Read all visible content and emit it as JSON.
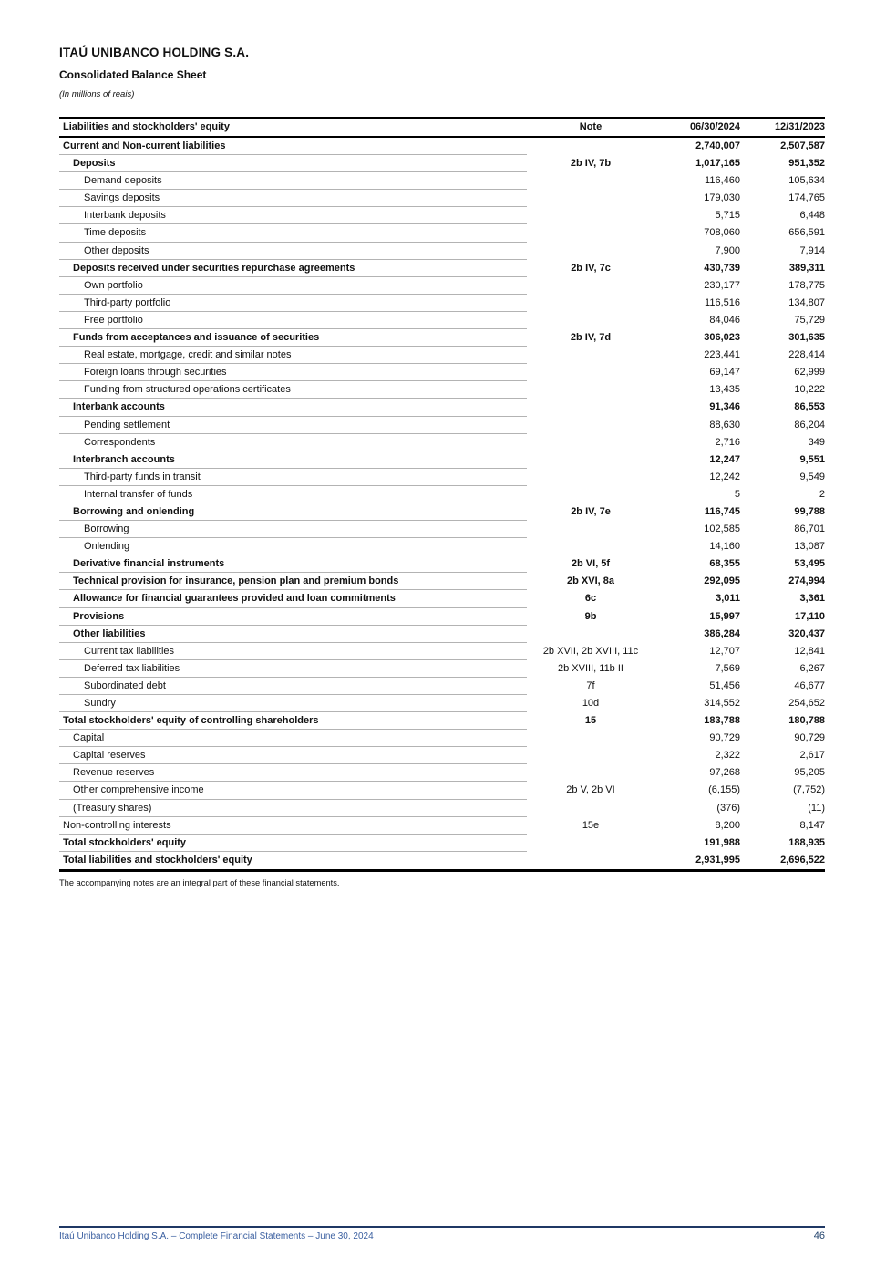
{
  "header": {
    "company": "ITAÚ UNIBANCO HOLDING S.A.",
    "title": "Consolidated Balance Sheet",
    "unit_note": "(In millions of reais)"
  },
  "table": {
    "columns": [
      "Liabilities and stockholders' equity",
      "Note",
      "06/30/2024",
      "12/31/2023"
    ],
    "rows": [
      {
        "label": "Current and Non-current liabilities",
        "note": "",
        "v2024": "2,740,007",
        "v2023": "2,507,587",
        "level": 0,
        "bold": true
      },
      {
        "label": "Deposits",
        "note": "2b IV, 7b",
        "v2024": "1,017,165",
        "v2023": "951,352",
        "level": 1,
        "bold": true
      },
      {
        "label": "Demand deposits",
        "note": "",
        "v2024": "116,460",
        "v2023": "105,634",
        "level": 2,
        "bold": false
      },
      {
        "label": "Savings deposits",
        "note": "",
        "v2024": "179,030",
        "v2023": "174,765",
        "level": 2,
        "bold": false
      },
      {
        "label": "Interbank deposits",
        "note": "",
        "v2024": "5,715",
        "v2023": "6,448",
        "level": 2,
        "bold": false
      },
      {
        "label": "Time deposits",
        "note": "",
        "v2024": "708,060",
        "v2023": "656,591",
        "level": 2,
        "bold": false
      },
      {
        "label": "Other deposits",
        "note": "",
        "v2024": "7,900",
        "v2023": "7,914",
        "level": 2,
        "bold": false
      },
      {
        "label": "Deposits received under securities repurchase agreements",
        "note": "2b IV, 7c",
        "v2024": "430,739",
        "v2023": "389,311",
        "level": 1,
        "bold": true
      },
      {
        "label": "Own portfolio",
        "note": "",
        "v2024": "230,177",
        "v2023": "178,775",
        "level": 2,
        "bold": false
      },
      {
        "label": "Third-party portfolio",
        "note": "",
        "v2024": "116,516",
        "v2023": "134,807",
        "level": 2,
        "bold": false
      },
      {
        "label": "Free portfolio",
        "note": "",
        "v2024": "84,046",
        "v2023": "75,729",
        "level": 2,
        "bold": false
      },
      {
        "label": "Funds from acceptances and issuance of securities",
        "note": "2b IV, 7d",
        "v2024": "306,023",
        "v2023": "301,635",
        "level": 1,
        "bold": true
      },
      {
        "label": "Real estate, mortgage, credit and similar notes",
        "note": "",
        "v2024": "223,441",
        "v2023": "228,414",
        "level": 2,
        "bold": false
      },
      {
        "label": "Foreign loans through securities",
        "note": "",
        "v2024": "69,147",
        "v2023": "62,999",
        "level": 2,
        "bold": false
      },
      {
        "label": "Funding from structured operations certificates",
        "note": "",
        "v2024": "13,435",
        "v2023": "10,222",
        "level": 2,
        "bold": false
      },
      {
        "label": "Interbank accounts",
        "note": "",
        "v2024": "91,346",
        "v2023": "86,553",
        "level": 1,
        "bold": true
      },
      {
        "label": "Pending settlement",
        "note": "",
        "v2024": "88,630",
        "v2023": "86,204",
        "level": 2,
        "bold": false
      },
      {
        "label": "Correspondents",
        "note": "",
        "v2024": "2,716",
        "v2023": "349",
        "level": 2,
        "bold": false
      },
      {
        "label": "Interbranch accounts",
        "note": "",
        "v2024": "12,247",
        "v2023": "9,551",
        "level": 1,
        "bold": true
      },
      {
        "label": "Third-party funds in transit",
        "note": "",
        "v2024": "12,242",
        "v2023": "9,549",
        "level": 2,
        "bold": false
      },
      {
        "label": "Internal transfer of funds",
        "note": "",
        "v2024": "5",
        "v2023": "2",
        "level": 2,
        "bold": false
      },
      {
        "label": "Borrowing and onlending",
        "note": "2b IV, 7e",
        "v2024": "116,745",
        "v2023": "99,788",
        "level": 1,
        "bold": true
      },
      {
        "label": "Borrowing",
        "note": "",
        "v2024": "102,585",
        "v2023": "86,701",
        "level": 2,
        "bold": false
      },
      {
        "label": "Onlending",
        "note": "",
        "v2024": "14,160",
        "v2023": "13,087",
        "level": 2,
        "bold": false
      },
      {
        "label": "Derivative financial instruments",
        "note": "2b VI, 5f",
        "v2024": "68,355",
        "v2023": "53,495",
        "level": 1,
        "bold": true
      },
      {
        "label": "Technical provision for insurance, pension plan and premium bonds",
        "note": "2b XVI, 8a",
        "v2024": "292,095",
        "v2023": "274,994",
        "level": 1,
        "bold": true
      },
      {
        "label": "Allowance for financial guarantees provided and loan commitments",
        "note": "6c",
        "v2024": "3,011",
        "v2023": "3,361",
        "level": 1,
        "bold": true
      },
      {
        "label": "Provisions",
        "note": "9b",
        "v2024": "15,997",
        "v2023": "17,110",
        "level": 1,
        "bold": true
      },
      {
        "label": "Other liabilities",
        "note": "",
        "v2024": "386,284",
        "v2023": "320,437",
        "level": 1,
        "bold": true
      },
      {
        "label": "Current tax liabilities",
        "note": "2b XVII, 2b XVIII, 11c",
        "v2024": "12,707",
        "v2023": "12,841",
        "level": 2,
        "bold": false
      },
      {
        "label": "Deferred tax liabilities",
        "note": "2b XVIII, 11b II",
        "v2024": "7,569",
        "v2023": "6,267",
        "level": 2,
        "bold": false
      },
      {
        "label": "Subordinated debt",
        "note": "7f",
        "v2024": "51,456",
        "v2023": "46,677",
        "level": 2,
        "bold": false
      },
      {
        "label": "Sundry",
        "note": "10d",
        "v2024": "314,552",
        "v2023": "254,652",
        "level": 2,
        "bold": false
      },
      {
        "label": "Total stockholders' equity of controlling shareholders",
        "note": "15",
        "v2024": "183,788",
        "v2023": "180,788",
        "level": 0,
        "bold": true
      },
      {
        "label": "Capital",
        "note": "",
        "v2024": "90,729",
        "v2023": "90,729",
        "level": 1,
        "bold": false
      },
      {
        "label": "Capital reserves",
        "note": "",
        "v2024": "2,322",
        "v2023": "2,617",
        "level": 1,
        "bold": false
      },
      {
        "label": "Revenue reserves",
        "note": "",
        "v2024": "97,268",
        "v2023": "95,205",
        "level": 1,
        "bold": false
      },
      {
        "label": "Other comprehensive income",
        "note": "2b V, 2b VI",
        "v2024": "(6,155)",
        "v2023": "(7,752)",
        "level": 1,
        "bold": false
      },
      {
        "label": "(Treasury shares)",
        "note": "",
        "v2024": "(376)",
        "v2023": "(11)",
        "level": 1,
        "bold": false
      },
      {
        "label": "Non-controlling interests",
        "note": "15e",
        "v2024": "8,200",
        "v2023": "8,147",
        "level": 0,
        "bold": false
      },
      {
        "label": "Total stockholders' equity",
        "note": "",
        "v2024": "191,988",
        "v2023": "188,935",
        "level": 0,
        "bold": true
      },
      {
        "label": "Total liabilities and stockholders' equity",
        "note": "",
        "v2024": "2,931,995",
        "v2023": "2,696,522",
        "level": 0,
        "bold": true
      }
    ]
  },
  "footnote": "The accompanying notes are an integral part of these financial statements.",
  "footer": {
    "left": "Itaú Unibanco Holding S.A. – Complete Financial Statements – June 30, 2024",
    "page": "46"
  },
  "colors": {
    "footer_rule_navy": "#1f3864",
    "footer_text_blue": "#3a5fa0",
    "page_number_blue": "#24456e",
    "row_separator_gray": "#b3b3b3",
    "table_border_black": "#000000"
  }
}
